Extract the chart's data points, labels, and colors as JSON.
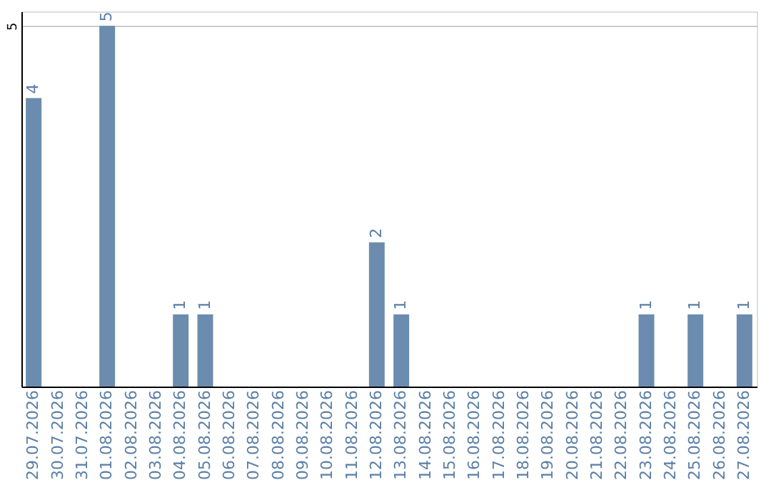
{
  "chart_data": {
    "type": "bar",
    "categories": [
      "29.07.2026",
      "30.07.2026",
      "31.07.2026",
      "01.08.2026",
      "02.08.2026",
      "03.08.2026",
      "04.08.2026",
      "05.08.2026",
      "06.08.2026",
      "07.08.2026",
      "08.08.2026",
      "09.08.2026",
      "10.08.2026",
      "11.08.2026",
      "12.08.2026",
      "13.08.2026",
      "14.08.2026",
      "15.08.2026",
      "16.08.2026",
      "17.08.2026",
      "18.08.2026",
      "19.08.2026",
      "20.08.2026",
      "21.08.2026",
      "22.08.2026",
      "23.08.2026",
      "24.08.2026",
      "25.08.2026",
      "26.08.2026",
      "27.08.2026"
    ],
    "values": [
      4,
      0,
      0,
      5,
      0,
      0,
      1,
      1,
      0,
      0,
      0,
      0,
      0,
      0,
      2,
      1,
      0,
      0,
      0,
      0,
      0,
      0,
      0,
      0,
      0,
      1,
      0,
      1,
      0,
      1
    ],
    "value_labels": [
      "4",
      null,
      null,
      "5",
      null,
      null,
      "1",
      "1",
      null,
      null,
      null,
      null,
      null,
      null,
      "2",
      "1",
      null,
      null,
      null,
      null,
      null,
      null,
      null,
      null,
      null,
      "1",
      null,
      "1",
      null,
      "1"
    ],
    "color": "#6b8cae",
    "ylim": [
      0,
      5.2
    ],
    "yticks": [
      5
    ],
    "grid": "y"
  }
}
